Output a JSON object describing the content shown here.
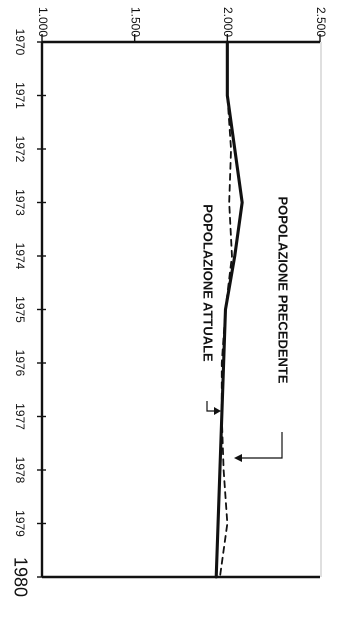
{
  "chart_data": {
    "type": "line",
    "orientation": "rotated-90-clockwise",
    "x": [
      "1970",
      "1971",
      "1972",
      "1973",
      "1974",
      "1975",
      "1976",
      "1977",
      "1978",
      "1979",
      "1980"
    ],
    "y_ticks": [
      "1.000",
      "1.500",
      "2.000",
      "2.500"
    ],
    "ylim": [
      1000,
      2500
    ],
    "grid": false,
    "series": [
      {
        "name": "POPOLAZIONE PRECEDENTE",
        "style": "dashed",
        "color": "#111111",
        "values": [
          2000,
          2000,
          2020,
          2010,
          2025,
          1990,
          1970,
          1970,
          1980,
          2000,
          1960
        ]
      },
      {
        "name": "POPOLAZIONE ATTUALE",
        "style": "solid",
        "color": "#111111",
        "values": [
          2000,
          2000,
          2040,
          2080,
          2040,
          1990,
          1980,
          1970,
          1960,
          1950,
          1940
        ]
      }
    ]
  }
}
